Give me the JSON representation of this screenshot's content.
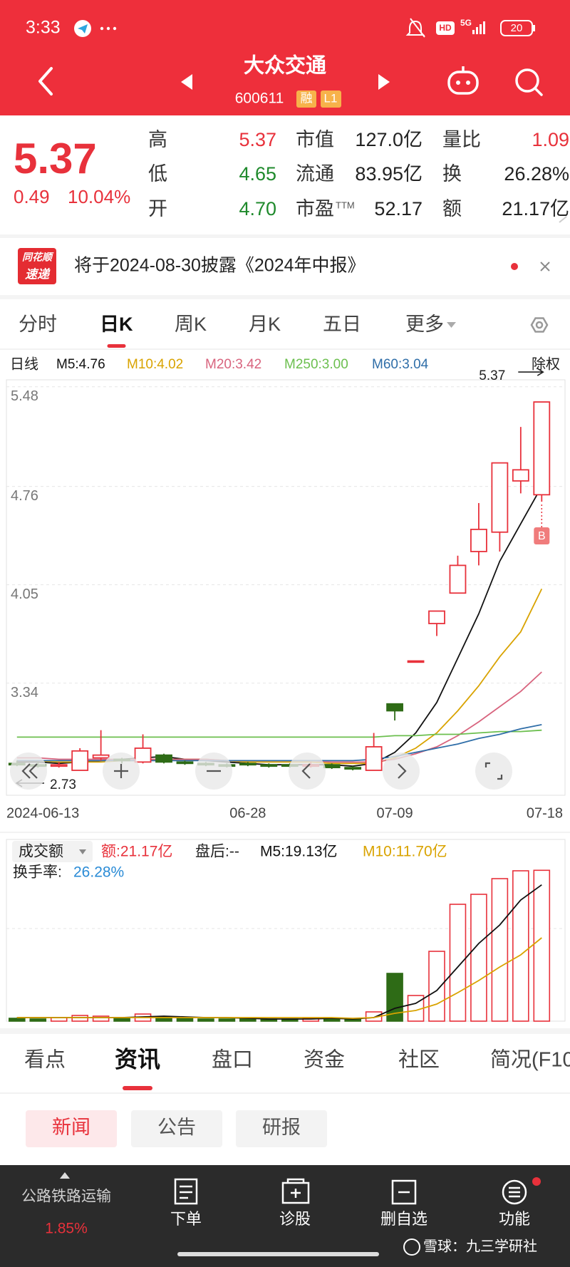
{
  "status_bar": {
    "time": "3:33",
    "hd": "HD",
    "network": "5G",
    "battery": "20"
  },
  "header": {
    "title": "大众交通",
    "code": "600611",
    "tags": [
      "融",
      "L1"
    ]
  },
  "quote": {
    "price": "5.37",
    "change": "0.49",
    "change_pct": "10.04%",
    "fields": [
      [
        {
          "label": "高",
          "value": "5.37",
          "color": "#e8313b"
        },
        {
          "label": "低",
          "value": "4.65",
          "color": "#1f8a2c"
        },
        {
          "label": "开",
          "value": "4.70",
          "color": "#1f8a2c"
        }
      ],
      [
        {
          "label": "市值",
          "value": "127.0亿",
          "color": "#222222"
        },
        {
          "label": "流通",
          "value": "83.95亿",
          "color": "#222222"
        },
        {
          "label": "市盈",
          "label_sup": "TTM",
          "value": "52.17",
          "color": "#222222"
        }
      ],
      [
        {
          "label": "量比",
          "value": "1.09",
          "color": "#e8313b"
        },
        {
          "label": "换",
          "value": "26.28%",
          "color": "#222222"
        },
        {
          "label": "额",
          "value": "21.17亿",
          "color": "#222222"
        }
      ]
    ]
  },
  "notice": {
    "badge": [
      "同花顺",
      "速递"
    ],
    "text": "将于2024-08-30披露《2024年中报》"
  },
  "period_tabs": {
    "items": [
      "分时",
      "日K",
      "周K",
      "月K",
      "五日",
      "更多"
    ],
    "active": 1
  },
  "chart_data": [
    {
      "type": "candlestick",
      "period_label": "日线",
      "adjust_label": "除权",
      "categories": [
        "2024-06-13",
        null,
        null,
        null,
        null,
        null,
        null,
        null,
        null,
        null,
        null,
        "06-28",
        null,
        null,
        null,
        null,
        null,
        null,
        "07-09",
        null,
        null,
        null,
        null,
        null,
        null,
        "07-18"
      ],
      "open": [
        2.76,
        2.75,
        2.74,
        2.71,
        2.8,
        2.79,
        2.77,
        2.82,
        2.77,
        2.76,
        2.75,
        2.76,
        2.75,
        2.75,
        2.74,
        2.75,
        2.73,
        2.71,
        3.19,
        3.5,
        3.77,
        3.99,
        4.29,
        4.43,
        4.8,
        4.7
      ],
      "high": [
        2.78,
        2.77,
        2.77,
        2.87,
        3.0,
        2.8,
        2.97,
        2.83,
        2.78,
        2.77,
        2.76,
        2.77,
        2.76,
        2.76,
        2.77,
        2.76,
        2.74,
        2.98,
        3.19,
        3.5,
        3.86,
        4.26,
        4.64,
        4.93,
        5.19,
        5.37
      ],
      "low": [
        2.74,
        2.73,
        2.73,
        2.71,
        2.78,
        2.76,
        2.76,
        2.76,
        2.75,
        2.74,
        2.73,
        2.74,
        2.73,
        2.73,
        2.73,
        2.72,
        2.71,
        2.71,
        3.07,
        3.5,
        3.68,
        3.99,
        4.19,
        4.29,
        4.71,
        4.65
      ],
      "close": [
        2.75,
        2.74,
        2.75,
        2.85,
        2.82,
        2.78,
        2.87,
        2.77,
        2.76,
        2.75,
        2.74,
        2.75,
        2.74,
        2.74,
        2.75,
        2.73,
        2.72,
        2.88,
        3.14,
        3.5,
        3.86,
        4.19,
        4.45,
        4.93,
        4.88,
        5.37
      ],
      "up_color": "#e8313b",
      "down_color": "#2e6b16",
      "series": [
        {
          "name": "M5:4.76",
          "color": "#111111",
          "values": [
            2.77,
            2.77,
            2.76,
            2.77,
            2.78,
            2.79,
            2.8,
            2.81,
            2.79,
            2.78,
            2.77,
            2.76,
            2.75,
            2.75,
            2.75,
            2.75,
            2.74,
            2.76,
            2.84,
            2.98,
            3.2,
            3.52,
            3.84,
            4.22,
            4.49,
            4.76
          ]
        },
        {
          "name": "M10:4.02",
          "color": "#d9a300",
          "values": [
            2.78,
            2.78,
            2.77,
            2.77,
            2.77,
            2.78,
            2.78,
            2.79,
            2.79,
            2.79,
            2.78,
            2.77,
            2.77,
            2.77,
            2.77,
            2.76,
            2.76,
            2.76,
            2.8,
            2.87,
            2.98,
            3.14,
            3.32,
            3.53,
            3.71,
            4.02
          ]
        },
        {
          "name": "M20:3.42",
          "color": "#d8647e",
          "values": [
            2.8,
            2.8,
            2.79,
            2.79,
            2.79,
            2.79,
            2.79,
            2.79,
            2.79,
            2.79,
            2.78,
            2.78,
            2.78,
            2.78,
            2.78,
            2.77,
            2.77,
            2.77,
            2.79,
            2.83,
            2.88,
            2.96,
            3.06,
            3.17,
            3.28,
            3.42
          ]
        },
        {
          "name": "M250:3.00",
          "color": "#6cbf4f",
          "values": [
            2.95,
            2.95,
            2.95,
            2.95,
            2.95,
            2.95,
            2.95,
            2.95,
            2.95,
            2.95,
            2.95,
            2.95,
            2.95,
            2.95,
            2.95,
            2.95,
            2.95,
            2.95,
            2.96,
            2.96,
            2.97,
            2.97,
            2.98,
            2.99,
            2.99,
            3.0
          ]
        },
        {
          "name": "M60:3.04",
          "color": "#2f6ea8",
          "values": [
            2.78,
            2.78,
            2.78,
            2.78,
            2.78,
            2.78,
            2.78,
            2.78,
            2.78,
            2.78,
            2.78,
            2.78,
            2.78,
            2.78,
            2.78,
            2.78,
            2.78,
            2.79,
            2.81,
            2.84,
            2.87,
            2.9,
            2.94,
            2.97,
            3.01,
            3.04
          ]
        }
      ],
      "ylim": [
        2.53,
        5.53
      ],
      "yticks": [
        5.48,
        4.76,
        4.05,
        3.34
      ],
      "grid": true,
      "high_annotation": 5.37,
      "low_annotation": 2.73,
      "trade_marker": "B"
    },
    {
      "type": "bar",
      "selector": "成交额",
      "amount_label": "额:21.17亿",
      "after_hours": "盘后:--",
      "turnover_label": "换手率:",
      "turnover_value": "26.28%",
      "values": [
        0.4,
        0.3,
        0.5,
        0.8,
        0.7,
        0.4,
        1.0,
        0.6,
        0.4,
        0.3,
        0.3,
        0.4,
        0.3,
        0.3,
        0.4,
        0.4,
        0.3,
        1.3,
        6.7,
        3.6,
        9.8,
        16.4,
        17.8,
        20.0,
        21.1,
        21.17
      ],
      "series": [
        {
          "name": "M5:19.13亿",
          "color": "#111111",
          "values": [
            0.5,
            0.5,
            0.5,
            0.5,
            0.5,
            0.5,
            0.6,
            0.7,
            0.6,
            0.5,
            0.5,
            0.4,
            0.3,
            0.3,
            0.3,
            0.4,
            0.3,
            0.5,
            1.8,
            2.5,
            4.3,
            7.6,
            10.9,
            13.5,
            17.0,
            19.13
          ]
        },
        {
          "name": "M10:11.70亿",
          "color": "#d9a300",
          "values": [
            0.5,
            0.5,
            0.5,
            0.5,
            0.5,
            0.5,
            0.5,
            0.5,
            0.5,
            0.5,
            0.5,
            0.5,
            0.5,
            0.5,
            0.5,
            0.5,
            0.4,
            0.5,
            1.1,
            1.5,
            2.4,
            4.0,
            5.7,
            7.6,
            9.3,
            11.7
          ]
        }
      ],
      "ylim": [
        0,
        21.6
      ]
    }
  ],
  "section_tabs": {
    "items": [
      "看点",
      "资讯",
      "盘口",
      "资金",
      "社区",
      "简况(F10)"
    ],
    "active": 1
  },
  "news_filters": {
    "items": [
      "新闻",
      "公告",
      "研报"
    ],
    "active": 0
  },
  "bottom_nav": {
    "sector": "公路铁路运输",
    "sector_change": "1.85%",
    "items": [
      "下单",
      "诊股",
      "删自选",
      "功能"
    ]
  },
  "watermark": "雪球：九三学研社"
}
